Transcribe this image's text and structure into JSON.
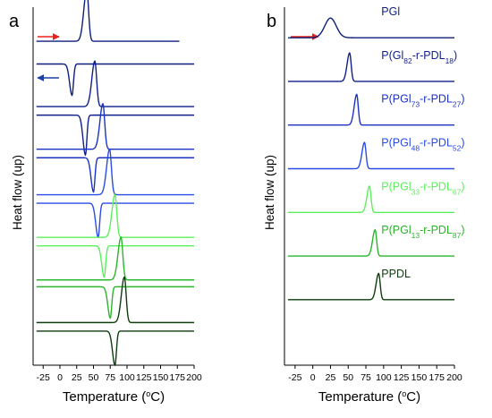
{
  "chart_data": [
    {
      "panel": "a",
      "type": "line",
      "xlabel": "Temperature (°C)",
      "xlabel_parts": [
        "Temperature (",
        "o",
        "C)"
      ],
      "ylabel": "Heat flow (up)",
      "xlim": [
        -40,
        200
      ],
      "xticks": [
        -25,
        0,
        25,
        50,
        75,
        100,
        125,
        150,
        175,
        200
      ],
      "grid": false,
      "legend": "none",
      "annotations": [
        {
          "type": "arrow",
          "direction": "right",
          "color": "#e8221b",
          "meaning": "heating"
        },
        {
          "type": "arrow",
          "direction": "left",
          "color": "#1f3fa8",
          "meaning": "cooling"
        }
      ],
      "series": [
        {
          "color": "#0d1f7a",
          "baseline": 4.2,
          "peaks": [
            {
              "t": 40,
              "h": 0.9
            }
          ],
          "x_end": 178
        },
        {
          "color": "#0d1f7a",
          "baseline": 3.8,
          "peaks": [
            {
              "t": 18,
              "h": -0.55
            }
          ]
        },
        {
          "color": "#0f1f8c",
          "baseline": 3.05,
          "peaks": [
            {
              "t": 52,
              "h": 0.8
            }
          ]
        },
        {
          "color": "#0f1f8c",
          "baseline": 2.9,
          "peaks": [
            {
              "t": 38,
              "h": -0.7
            }
          ]
        },
        {
          "color": "#1b33c4",
          "baseline": 2.3,
          "peaks": [
            {
              "t": 64,
              "h": 0.8
            }
          ]
        },
        {
          "color": "#1b33c4",
          "baseline": 2.15,
          "peaks": [
            {
              "t": 50,
              "h": -0.6
            }
          ]
        },
        {
          "color": "#2a4be6",
          "baseline": 1.5,
          "peaks": [
            {
              "t": 74,
              "h": 0.8
            }
          ]
        },
        {
          "color": "#2a4be6",
          "baseline": 1.35,
          "peaks": [
            {
              "t": 57,
              "h": -0.6
            }
          ]
        },
        {
          "color": "#5cf05c",
          "baseline": 0.75,
          "peaks": [
            {
              "t": 82,
              "h": 0.75
            }
          ]
        },
        {
          "color": "#5cf05c",
          "baseline": 0.6,
          "peaks": [
            {
              "t": 66,
              "h": -0.55
            }
          ]
        },
        {
          "color": "#2bb52b",
          "baseline": 0.0,
          "peaks": [
            {
              "t": 91,
              "h": 0.75
            }
          ]
        },
        {
          "color": "#2bb52b",
          "baseline": -0.12,
          "peaks": [
            {
              "t": 75,
              "h": -0.55
            }
          ]
        },
        {
          "color": "#0d3d0d",
          "baseline": -0.75,
          "peaks": [
            {
              "t": 96,
              "h": 0.8
            }
          ]
        },
        {
          "color": "#0d3d0d",
          "baseline": -0.9,
          "peaks": [
            {
              "t": 82,
              "h": -0.6
            }
          ]
        }
      ]
    },
    {
      "panel": "b",
      "type": "line",
      "xlabel": "Temperature (°C)",
      "xlabel_parts": [
        "Temperature (",
        "o",
        "C)"
      ],
      "ylabel": "Heat flow (up)",
      "xlim": [
        -40,
        200
      ],
      "xticks": [
        -25,
        0,
        25,
        50,
        75,
        100,
        125,
        150,
        175,
        200
      ],
      "grid": false,
      "legend": "inline labels",
      "annotations": [
        {
          "type": "arrow",
          "direction": "right",
          "color": "#e8221b",
          "meaning": "heating"
        }
      ],
      "series": [
        {
          "name": "PGl",
          "name_parts": [
            [
              "PGl",
              ""
            ]
          ],
          "color": "#0d1f7a",
          "baseline": 6.0,
          "peaks": [
            {
              "t": 25,
              "h": 0.45
            }
          ]
        },
        {
          "name": "P(Gl82-r-PDL18)",
          "name_parts": [
            [
              "P(Gl",
              ""
            ],
            [
              "82",
              "sub"
            ],
            [
              "-r-PDL",
              ""
            ],
            [
              "18",
              "sub"
            ],
            [
              ")",
              ""
            ]
          ],
          "color": "#0f1f8c",
          "baseline": 5.0,
          "peaks": [
            {
              "t": 52,
              "h": 0.65
            }
          ]
        },
        {
          "name": "P(PGl73-r-PDL27)",
          "name_parts": [
            [
              "P(PGl",
              ""
            ],
            [
              "73",
              "sub"
            ],
            [
              "-r-PDL",
              ""
            ],
            [
              "27",
              "sub"
            ],
            [
              ")",
              ""
            ]
          ],
          "color": "#1b33c4",
          "baseline": 4.0,
          "peaks": [
            {
              "t": 62,
              "h": 0.7
            }
          ]
        },
        {
          "name": "P(PGl48-r-PDL52)",
          "name_parts": [
            [
              "P(PGl",
              ""
            ],
            [
              "48",
              "sub"
            ],
            [
              "-r-PDL",
              ""
            ],
            [
              "52",
              "sub"
            ],
            [
              ")",
              ""
            ]
          ],
          "color": "#2a4be6",
          "baseline": 3.0,
          "peaks": [
            {
              "t": 73,
              "h": 0.6
            }
          ]
        },
        {
          "name": "P(PGl33-r-PDL67)",
          "name_parts": [
            [
              "P(PGl",
              ""
            ],
            [
              "33",
              "sub"
            ],
            [
              "-r-PDL",
              ""
            ],
            [
              "67",
              "sub"
            ],
            [
              ")",
              ""
            ]
          ],
          "color": "#5cf05c",
          "baseline": 2.0,
          "peaks": [
            {
              "t": 80,
              "h": 0.6
            }
          ]
        },
        {
          "name": "P(PGl13-r-PDL87)",
          "name_parts": [
            [
              "P(PGl",
              ""
            ],
            [
              "13",
              "sub"
            ],
            [
              "-r-PDL",
              ""
            ],
            [
              "87",
              "sub"
            ],
            [
              ")",
              ""
            ]
          ],
          "color": "#2bb52b",
          "baseline": 1.0,
          "peaks": [
            {
              "t": 88,
              "h": 0.6
            }
          ]
        },
        {
          "name": "PPDL",
          "name_parts": [
            [
              "PPDL",
              ""
            ]
          ],
          "color": "#0d3d0d",
          "baseline": 0.0,
          "peaks": [
            {
              "t": 93,
              "h": 0.6
            }
          ]
        }
      ]
    }
  ]
}
